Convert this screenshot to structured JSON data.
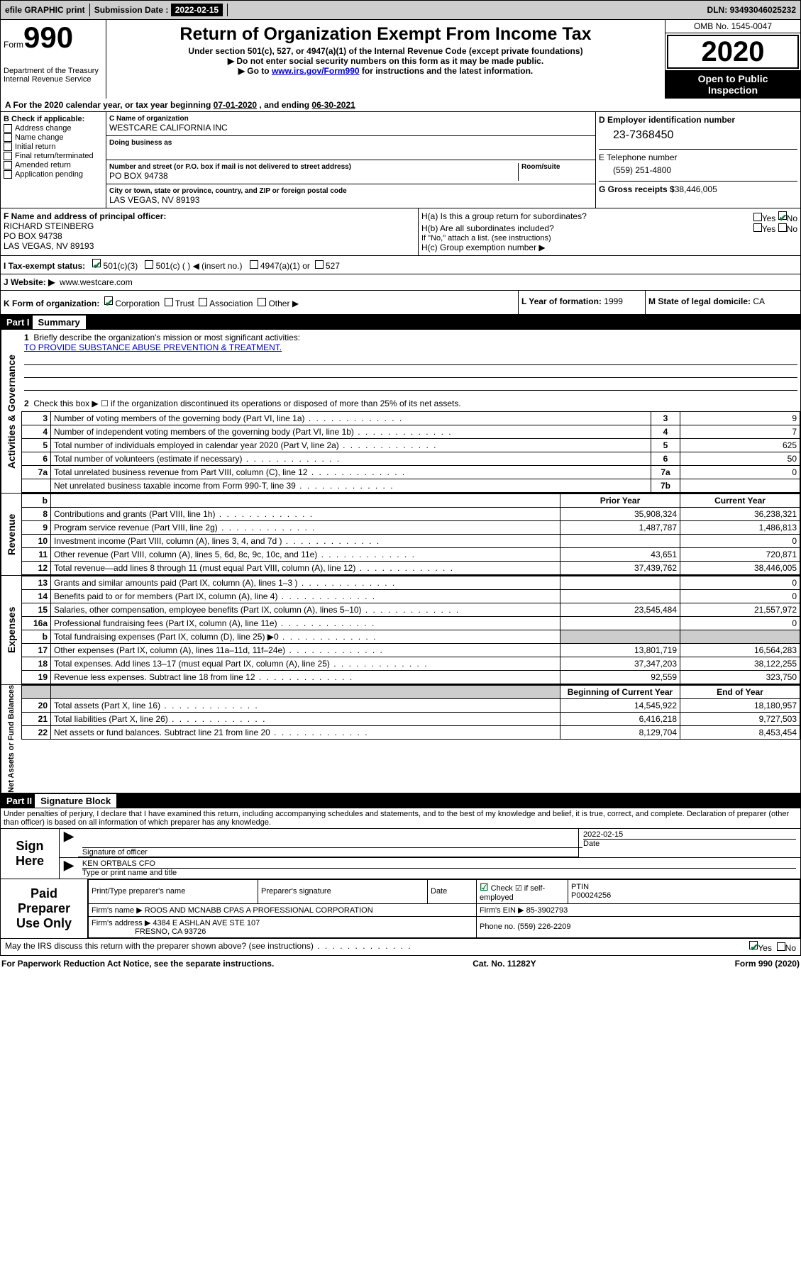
{
  "top_bar": {
    "efile": "efile GRAPHIC print",
    "sub_label": "Submission Date :",
    "sub_date": "2022-02-15",
    "dln_label": "DLN:",
    "dln": "93493046025232"
  },
  "header": {
    "form_label": "Form",
    "form_num": "990",
    "dept1": "Department of the Treasury",
    "dept2": "Internal Revenue Service",
    "title": "Return of Organization Exempt From Income Tax",
    "sub1": "Under section 501(c), 527, or 4947(a)(1) of the Internal Revenue Code (except private foundations)",
    "sub2a": "▶ Do not enter social security numbers on this form as it may be made public.",
    "sub2b_pre": "▶ Go to ",
    "sub2b_link": "www.irs.gov/Form990",
    "sub2b_post": " for instructions and the latest information.",
    "omb": "OMB No. 1545-0047",
    "year": "2020",
    "open1": "Open to Public",
    "open2": "Inspection"
  },
  "period": {
    "text_a": "A For the 2020 calendar year, or tax year beginning ",
    "begin": "07-01-2020",
    "text_end": " , and ending ",
    "end": "06-30-2021"
  },
  "block_b": {
    "label": "B Check if applicable:",
    "items": [
      "Address change",
      "Name change",
      "Initial return",
      "Final return/terminated",
      "Amended return",
      "Application pending"
    ]
  },
  "block_c": {
    "lbl_name": "C Name of organization",
    "name": "WESTCARE CALIFORNIA INC",
    "dba": "Doing business as",
    "lbl_street": "Number and street (or P.O. box if mail is not delivered to street address)",
    "street": "PO BOX 94738",
    "lbl_room": "Room/suite",
    "lbl_city": "City or town, state or province, country, and ZIP or foreign postal code",
    "city": "LAS VEGAS, NV  89193"
  },
  "block_d": {
    "lbl": "D Employer identification number",
    "ein": "23-7368450"
  },
  "block_e": {
    "lbl": "E Telephone number",
    "tel": "(559) 251-4800"
  },
  "block_g": {
    "lbl": "G Gross receipts $",
    "amt": "38,446,005"
  },
  "block_f": {
    "lbl": "F Name and address of principal officer:",
    "name": "RICHARD STEINBERG",
    "addr1": "PO BOX 94738",
    "addr2": "LAS VEGAS, NV  89193"
  },
  "block_h": {
    "a": "H(a)  Is this a group return for subordinates?",
    "b": "H(b)  Are all subordinates included?",
    "note": "If \"No,\" attach a list. (see instructions)",
    "c": "H(c)  Group exemption number ▶",
    "yes": "Yes",
    "no": "No"
  },
  "block_i": {
    "lbl": "I  Tax-exempt status:",
    "c3": "501(c)(3)",
    "c": "501(c) (  ) ◀ (insert no.)",
    "a1": "4947(a)(1) or",
    "s527": "527"
  },
  "block_j": {
    "lbl": "J  Website: ▶",
    "site": "www.westcare.com"
  },
  "block_k": {
    "lbl": "K Form of organization:",
    "corp": "Corporation",
    "trust": "Trust",
    "assoc": "Association",
    "other": "Other ▶"
  },
  "block_l": {
    "lbl": "L Year of formation:",
    "val": "1999"
  },
  "block_m": {
    "lbl": "M State of legal domicile:",
    "val": "CA"
  },
  "part1": {
    "title": "Part I",
    "sub": "Summary"
  },
  "briefly": {
    "num": "1",
    "text": "Briefly describe the organization's mission or most significant activities:",
    "mission": "TO PROVIDE SUBSTANCE ABUSE PREVENTION & TREATMENT."
  },
  "line2": {
    "num": "2",
    "text": "Check this box ▶ ☐  if the organization discontinued its operations or disposed of more than 25% of its net assets."
  },
  "gov_rows": [
    {
      "n": "3",
      "txt": "Number of voting members of the governing body (Part VI, line 1a)",
      "box": "3",
      "val": "9"
    },
    {
      "n": "4",
      "txt": "Number of independent voting members of the governing body (Part VI, line 1b)",
      "box": "4",
      "val": "7"
    },
    {
      "n": "5",
      "txt": "Total number of individuals employed in calendar year 2020 (Part V, line 2a)",
      "box": "5",
      "val": "625"
    },
    {
      "n": "6",
      "txt": "Total number of volunteers (estimate if necessary)",
      "box": "6",
      "val": "50"
    },
    {
      "n": "7a",
      "txt": "Total unrelated business revenue from Part VIII, column (C), line 12",
      "box": "7a",
      "val": "0"
    },
    {
      "n": "",
      "txt": "Net unrelated business taxable income from Form 990-T, line 39",
      "box": "7b",
      "val": ""
    }
  ],
  "rev_header": {
    "prior": "Prior Year",
    "curr": "Current Year"
  },
  "revenue_rows": [
    {
      "n": "8",
      "txt": "Contributions and grants (Part VIII, line 1h)",
      "p": "35,908,324",
      "c": "36,238,321"
    },
    {
      "n": "9",
      "txt": "Program service revenue (Part VIII, line 2g)",
      "p": "1,487,787",
      "c": "1,486,813"
    },
    {
      "n": "10",
      "txt": "Investment income (Part VIII, column (A), lines 3, 4, and 7d )",
      "p": "",
      "c": "0"
    },
    {
      "n": "11",
      "txt": "Other revenue (Part VIII, column (A), lines 5, 6d, 8c, 9c, 10c, and 11e)",
      "p": "43,651",
      "c": "720,871"
    },
    {
      "n": "12",
      "txt": "Total revenue—add lines 8 through 11 (must equal Part VIII, column (A), line 12)",
      "p": "37,439,762",
      "c": "38,446,005"
    }
  ],
  "expense_rows": [
    {
      "n": "13",
      "txt": "Grants and similar amounts paid (Part IX, column (A), lines 1–3 )",
      "p": "",
      "c": "0"
    },
    {
      "n": "14",
      "txt": "Benefits paid to or for members (Part IX, column (A), line 4)",
      "p": "",
      "c": "0"
    },
    {
      "n": "15",
      "txt": "Salaries, other compensation, employee benefits (Part IX, column (A), lines 5–10)",
      "p": "23,545,484",
      "c": "21,557,972"
    },
    {
      "n": "16a",
      "txt": "Professional fundraising fees (Part IX, column (A), line 11e)",
      "p": "",
      "c": "0"
    },
    {
      "n": "b",
      "txt": "Total fundraising expenses (Part IX, column (D), line 25) ▶0",
      "p": "SHADE",
      "c": "SHADE"
    },
    {
      "n": "17",
      "txt": "Other expenses (Part IX, column (A), lines 11a–11d, 11f–24e)",
      "p": "13,801,719",
      "c": "16,564,283"
    },
    {
      "n": "18",
      "txt": "Total expenses. Add lines 13–17 (must equal Part IX, column (A), line 25)",
      "p": "37,347,203",
      "c": "38,122,255"
    },
    {
      "n": "19",
      "txt": "Revenue less expenses. Subtract line 18 from line 12",
      "p": "92,559",
      "c": "323,750"
    }
  ],
  "net_header": {
    "b": "Beginning of Current Year",
    "e": "End of Year"
  },
  "net_rows": [
    {
      "n": "20",
      "txt": "Total assets (Part X, line 16)",
      "p": "14,545,922",
      "c": "18,180,957"
    },
    {
      "n": "21",
      "txt": "Total liabilities (Part X, line 26)",
      "p": "6,416,218",
      "c": "9,727,503"
    },
    {
      "n": "22",
      "txt": "Net assets or fund balances. Subtract line 21 from line 20",
      "p": "8,129,704",
      "c": "8,453,454"
    }
  ],
  "tabs": {
    "gov": "Activities & Governance",
    "rev": "Revenue",
    "exp": "Expenses",
    "net": "Net Assets or Fund Balances"
  },
  "part2": {
    "title": "Part II",
    "sub": "Signature Block"
  },
  "perjury": "Under penalties of perjury, I declare that I have examined this return, including accompanying schedules and statements, and to the best of my knowledge and belief, it is true, correct, and complete. Declaration of preparer (other than officer) is based on all information of which preparer has any knowledge.",
  "sign": {
    "here": "Sign Here",
    "sig_officer": "Signature of officer",
    "date": "Date",
    "date_val": "2022-02-15",
    "officer": "KEN ORTBALS CFO",
    "type_name": "Type or print name and title"
  },
  "paid": {
    "label": "Paid Preparer Use Only",
    "print_name": "Print/Type preparer's name",
    "prep_sig": "Preparer's signature",
    "date": "Date",
    "check": "Check ☑ if self-employed",
    "ptin_lbl": "PTIN",
    "ptin": "P00024256",
    "firm_name_lbl": "Firm's name  ▶",
    "firm_name": "ROOS AND MCNABB CPAS A PROFESSIONAL CORPORATION",
    "firm_ein_lbl": "Firm's EIN ▶",
    "firm_ein": "85-3902793",
    "firm_addr_lbl": "Firm's address ▶",
    "firm_addr1": "4384 E ASHLAN AVE STE 107",
    "firm_addr2": "FRESNO, CA  93726",
    "phone_lbl": "Phone no.",
    "phone": "(559) 226-2209"
  },
  "discuss": {
    "text": "May the IRS discuss this return with the preparer shown above? (see instructions)",
    "yes": "Yes",
    "no": "No"
  },
  "footer": {
    "left": "For Paperwork Reduction Act Notice, see the separate instructions.",
    "mid": "Cat. No. 11282Y",
    "right": "Form 990 (2020)"
  },
  "b_char": "b"
}
